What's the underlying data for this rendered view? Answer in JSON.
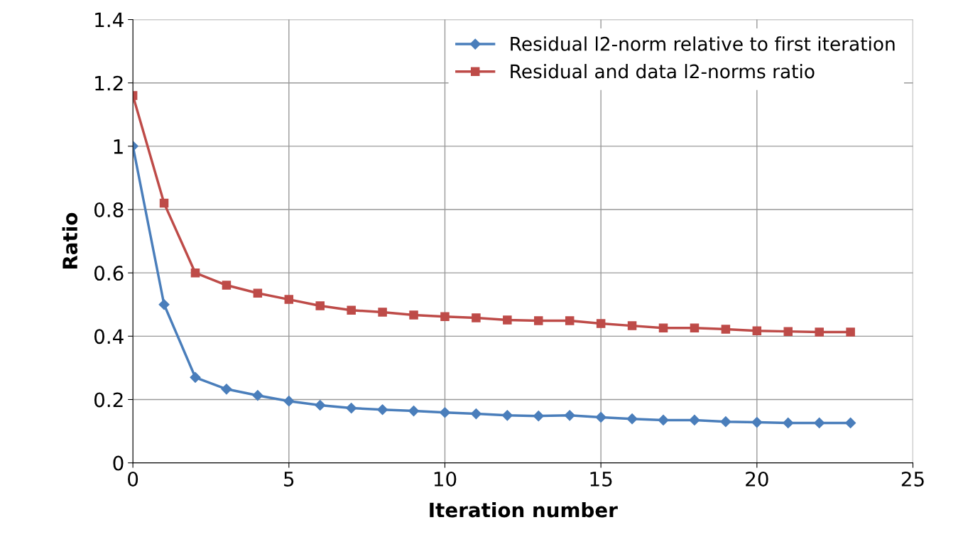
{
  "chart_data": {
    "type": "line",
    "xlabel": "Iteration number",
    "ylabel": "Ratio",
    "x": [
      0,
      1,
      2,
      3,
      4,
      5,
      6,
      7,
      8,
      9,
      10,
      11,
      12,
      13,
      14,
      15,
      16,
      17,
      18,
      19,
      20,
      21,
      22,
      23
    ],
    "series": [
      {
        "name": "Residual l2-norm relative to first iteration",
        "color": "#4a7ebb",
        "marker": "diamond",
        "values": [
          1.0,
          0.5,
          0.27,
          0.233,
          0.213,
          0.195,
          0.182,
          0.173,
          0.168,
          0.164,
          0.159,
          0.155,
          0.15,
          0.148,
          0.15,
          0.144,
          0.139,
          0.135,
          0.135,
          0.13,
          0.128,
          0.126,
          0.126,
          0.126
        ]
      },
      {
        "name": "Residual and data l2-norms ratio",
        "color": "#be4b48",
        "marker": "square",
        "values": [
          1.16,
          0.82,
          0.6,
          0.561,
          0.536,
          0.516,
          0.496,
          0.482,
          0.476,
          0.467,
          0.462,
          0.458,
          0.451,
          0.449,
          0.449,
          0.44,
          0.433,
          0.426,
          0.426,
          0.422,
          0.417,
          0.415,
          0.413,
          0.413
        ]
      }
    ],
    "xlim": [
      0,
      25
    ],
    "xticks": [
      0,
      5,
      10,
      15,
      20,
      25
    ],
    "ylim": [
      0,
      1.4
    ],
    "yticks": [
      0,
      0.2,
      0.4,
      0.6,
      0.8,
      1,
      1.2,
      1.4
    ],
    "grid": true,
    "legend": "top right",
    "line_style": "solid"
  }
}
